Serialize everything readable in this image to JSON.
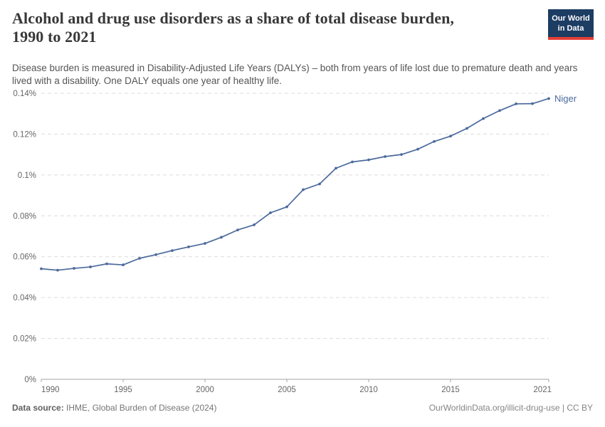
{
  "header": {
    "title_line1": "Alcohol and drug use disorders as a share of total disease burden,",
    "title_line2": "1990 to 2021",
    "subtitle": "Disease burden is measured in Disability-Adjusted Life Years (DALYs) – both from years of life lost due to premature death and years lived with a disability. One DALY equals one year of healthy life.",
    "logo": {
      "line1": "Our World",
      "line2": "in Data"
    }
  },
  "footer": {
    "datasource_label": "Data source:",
    "datasource_text": " IHME, Global Burden of Disease (2024)",
    "credit": "OurWorldinData.org/illicit-drug-use | CC BY"
  },
  "colors": {
    "line": "#4c6a9c",
    "grid": "#dcdcdc",
    "axis": "#a3a3a3",
    "tick_label": "#666666",
    "logo_bg": "#1d3d63",
    "logo_stripe": "#e63e36"
  },
  "chart_data": {
    "type": "line",
    "title": "Alcohol and drug use disorders as a share of total disease burden, 1990 to 2021",
    "xlabel": "",
    "ylabel": "",
    "unit": "% of total disease burden (DALYs)",
    "grid": "horizontal dashed",
    "legend": "end-of-line label",
    "xlim": [
      1990,
      2021
    ],
    "ylim": [
      0,
      0.14
    ],
    "x": [
      1990,
      1991,
      1992,
      1993,
      1994,
      1995,
      1996,
      1997,
      1998,
      1999,
      2000,
      2001,
      2002,
      2003,
      2004,
      2005,
      2006,
      2007,
      2008,
      2009,
      2010,
      2011,
      2012,
      2013,
      2014,
      2015,
      2016,
      2017,
      2018,
      2019,
      2020,
      2021
    ],
    "series": [
      {
        "name": "Niger",
        "values": [
          0.0541,
          0.0534,
          0.0543,
          0.055,
          0.0565,
          0.056,
          0.0592,
          0.061,
          0.063,
          0.0648,
          0.0665,
          0.0695,
          0.0731,
          0.0756,
          0.0815,
          0.0844,
          0.0928,
          0.0956,
          0.1033,
          0.1064,
          0.1074,
          0.109,
          0.11,
          0.1126,
          0.1164,
          0.119,
          0.1228,
          0.1276,
          0.1315,
          0.1348,
          0.1349,
          0.1374
        ]
      }
    ],
    "yticks": [
      0,
      0.02,
      0.04,
      0.06,
      0.08,
      0.1,
      0.12,
      0.14
    ],
    "ytick_labels": [
      "0%",
      "0.02%",
      "0.04%",
      "0.06%",
      "0.08%",
      "0.1%",
      "0.12%",
      "0.14%"
    ],
    "xticks": [
      1990,
      1995,
      2000,
      2005,
      2010,
      2015,
      2021
    ],
    "xtick_labels": [
      "1990",
      "1995",
      "2000",
      "2005",
      "2010",
      "2015",
      "2021"
    ]
  }
}
